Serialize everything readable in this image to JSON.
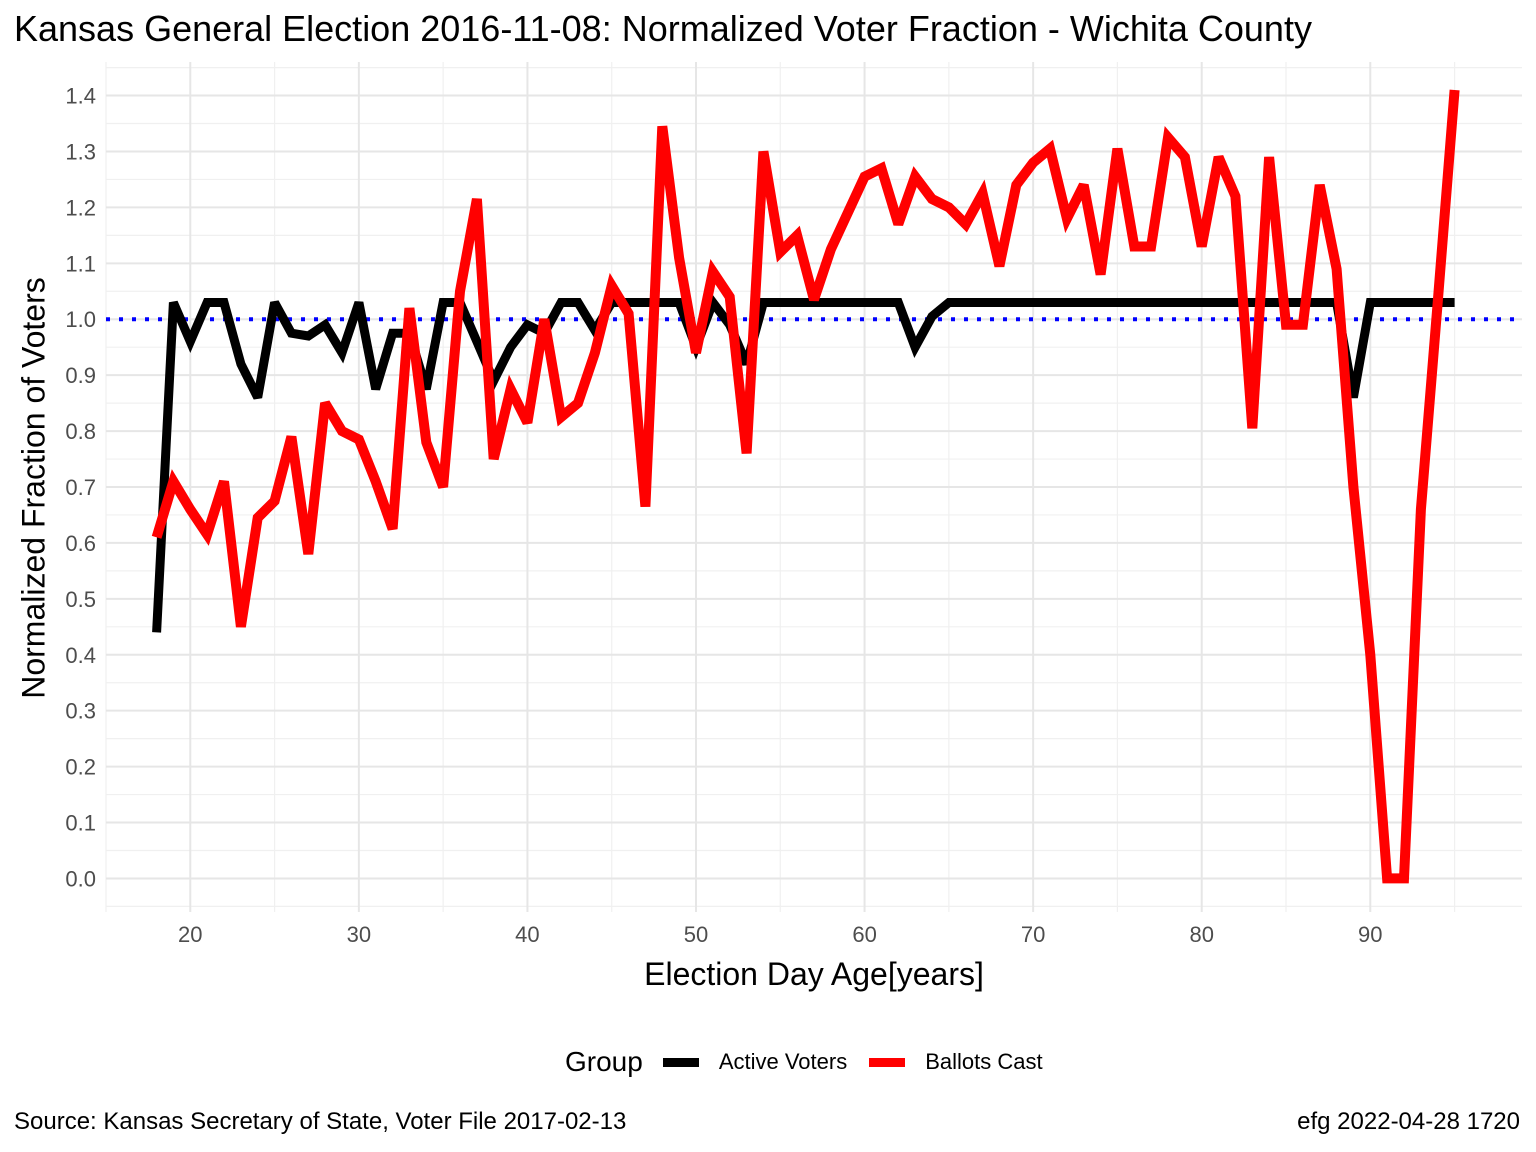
{
  "chart_data": {
    "type": "line",
    "title": "Kansas General Election 2016-11-08:  Normalized Voter Fraction - Wichita County",
    "xlabel": "Election Day Age[years]",
    "ylabel": "Normalized Fraction of Voters",
    "xlim": [
      15,
      99
    ],
    "ylim": [
      -0.06,
      1.46
    ],
    "x_ticks": [
      20,
      30,
      40,
      50,
      60,
      70,
      80,
      90
    ],
    "y_ticks": [
      0.0,
      0.1,
      0.2,
      0.3,
      0.4,
      0.5,
      0.6,
      0.7,
      0.8,
      0.9,
      1.0,
      1.1,
      1.2,
      1.3,
      1.4
    ],
    "grid": true,
    "reference_line": {
      "y": 1.0,
      "style": "dotted",
      "color": "#0000ff"
    },
    "legend": {
      "title": "Group",
      "position": "bottom",
      "entries": [
        {
          "label": "Active Voters",
          "color": "#000000"
        },
        {
          "label": "Ballots Cast",
          "color": "#ff0000"
        }
      ]
    },
    "series": [
      {
        "name": "Active Voters",
        "color": "#000000",
        "x": [
          18,
          19,
          20,
          21,
          22,
          23,
          24,
          25,
          26,
          27,
          28,
          29,
          30,
          31,
          32,
          33,
          34,
          35,
          36,
          37,
          38,
          39,
          40,
          41,
          42,
          43,
          44,
          45,
          46,
          47,
          48,
          49,
          50,
          51,
          52,
          53,
          54,
          55,
          56,
          57,
          58,
          59,
          60,
          61,
          62,
          63,
          64,
          65,
          66,
          67,
          68,
          69,
          70,
          71,
          72,
          73,
          74,
          75,
          76,
          77,
          78,
          79,
          80,
          81,
          82,
          83,
          84,
          85,
          86,
          87,
          88,
          89,
          90,
          91,
          92,
          93,
          94,
          95
        ],
        "y": [
          0.44,
          1.03,
          0.96,
          1.03,
          1.03,
          0.92,
          0.86,
          1.03,
          0.975,
          0.97,
          0.99,
          0.94,
          1.03,
          0.875,
          0.975,
          0.975,
          0.875,
          1.03,
          1.03,
          0.96,
          0.89,
          0.95,
          0.99,
          0.975,
          1.03,
          1.03,
          0.98,
          1.03,
          1.03,
          1.03,
          1.03,
          1.03,
          0.95,
          1.03,
          0.99,
          0.92,
          1.03,
          1.03,
          1.03,
          1.03,
          1.03,
          1.03,
          1.03,
          1.03,
          1.03,
          0.95,
          1.005,
          1.03,
          1.03,
          1.03,
          1.03,
          1.03,
          1.03,
          1.03,
          1.03,
          1.03,
          1.03,
          1.03,
          1.03,
          1.03,
          1.03,
          1.03,
          1.03,
          1.03,
          1.03,
          1.03,
          1.03,
          1.03,
          1.03,
          1.03,
          1.03,
          0.86,
          1.03,
          1.03,
          1.03,
          1.03,
          1.03,
          1.03
        ]
      },
      {
        "name": "Ballots Cast",
        "color": "#ff0000",
        "x": [
          18,
          19,
          20,
          21,
          22,
          23,
          24,
          25,
          26,
          27,
          28,
          29,
          30,
          31,
          32,
          33,
          34,
          35,
          36,
          37,
          38,
          39,
          40,
          41,
          42,
          43,
          44,
          45,
          46,
          47,
          48,
          49,
          50,
          51,
          52,
          53,
          54,
          55,
          56,
          57,
          58,
          59,
          60,
          61,
          62,
          63,
          64,
          65,
          66,
          67,
          68,
          69,
          70,
          71,
          72,
          73,
          74,
          75,
          76,
          77,
          78,
          79,
          80,
          81,
          82,
          83,
          84,
          85,
          86,
          87,
          88,
          89,
          90,
          91,
          92,
          93,
          94,
          95
        ],
        "y": [
          0.61,
          0.71,
          0.66,
          0.615,
          0.71,
          0.45,
          0.645,
          0.675,
          0.79,
          0.58,
          0.85,
          0.8,
          0.785,
          0.71,
          0.625,
          1.02,
          0.78,
          0.7,
          1.05,
          1.215,
          0.75,
          0.875,
          0.815,
          1.0,
          0.825,
          0.85,
          0.94,
          1.06,
          1.01,
          0.665,
          1.345,
          1.11,
          0.94,
          1.085,
          1.04,
          0.76,
          1.3,
          1.12,
          1.15,
          1.035,
          1.125,
          1.19,
          1.255,
          1.27,
          1.17,
          1.255,
          1.215,
          1.2,
          1.17,
          1.225,
          1.095,
          1.24,
          1.28,
          1.305,
          1.18,
          1.24,
          1.08,
          1.305,
          1.13,
          1.13,
          1.325,
          1.29,
          1.13,
          1.29,
          1.22,
          0.805,
          1.29,
          0.99,
          0.99,
          1.24,
          1.09,
          0.7,
          0.4,
          0.0,
          0.0,
          0.66,
          1.03,
          1.41
        ]
      }
    ]
  },
  "source_caption": "Source:  Kansas Secretary of State, Voter File  2017-02-13",
  "credit_caption": "efg 2022-04-28 1720"
}
